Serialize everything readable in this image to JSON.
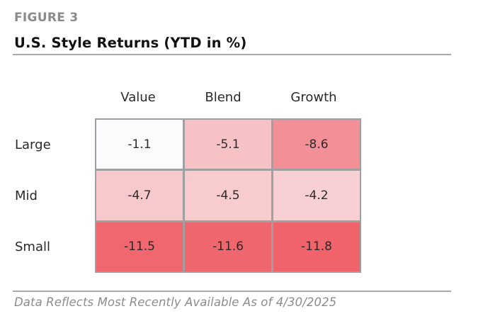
{
  "header": {
    "figure_label": "FIGURE 3",
    "title": "U.S. Style Returns (YTD in %)"
  },
  "footer": {
    "note": "Data Reflects Most Recently Available As of 4/30/2025"
  },
  "colors": {
    "scale_low": "#fbfbfd",
    "scale_high": "#f0636b",
    "grid_border": "#a0a0a0",
    "rule": "#a9a9a9"
  },
  "chart_data": {
    "type": "heatmap",
    "title": "U.S. Style Returns (YTD in %)",
    "columns": [
      "Value",
      "Blend",
      "Growth"
    ],
    "rows": [
      "Large",
      "Mid",
      "Small"
    ],
    "values": [
      [
        -1.1,
        -5.1,
        -8.6
      ],
      [
        -4.7,
        -4.5,
        -4.2
      ],
      [
        -11.5,
        -11.6,
        -11.8
      ]
    ],
    "value_labels": [
      [
        "-1.1",
        "-5.1",
        "-8.6"
      ],
      [
        "-4.7",
        "-4.5",
        "-4.2"
      ],
      [
        "-11.5",
        "-11.6",
        "-11.8"
      ]
    ],
    "grid": true,
    "legend": "none"
  }
}
